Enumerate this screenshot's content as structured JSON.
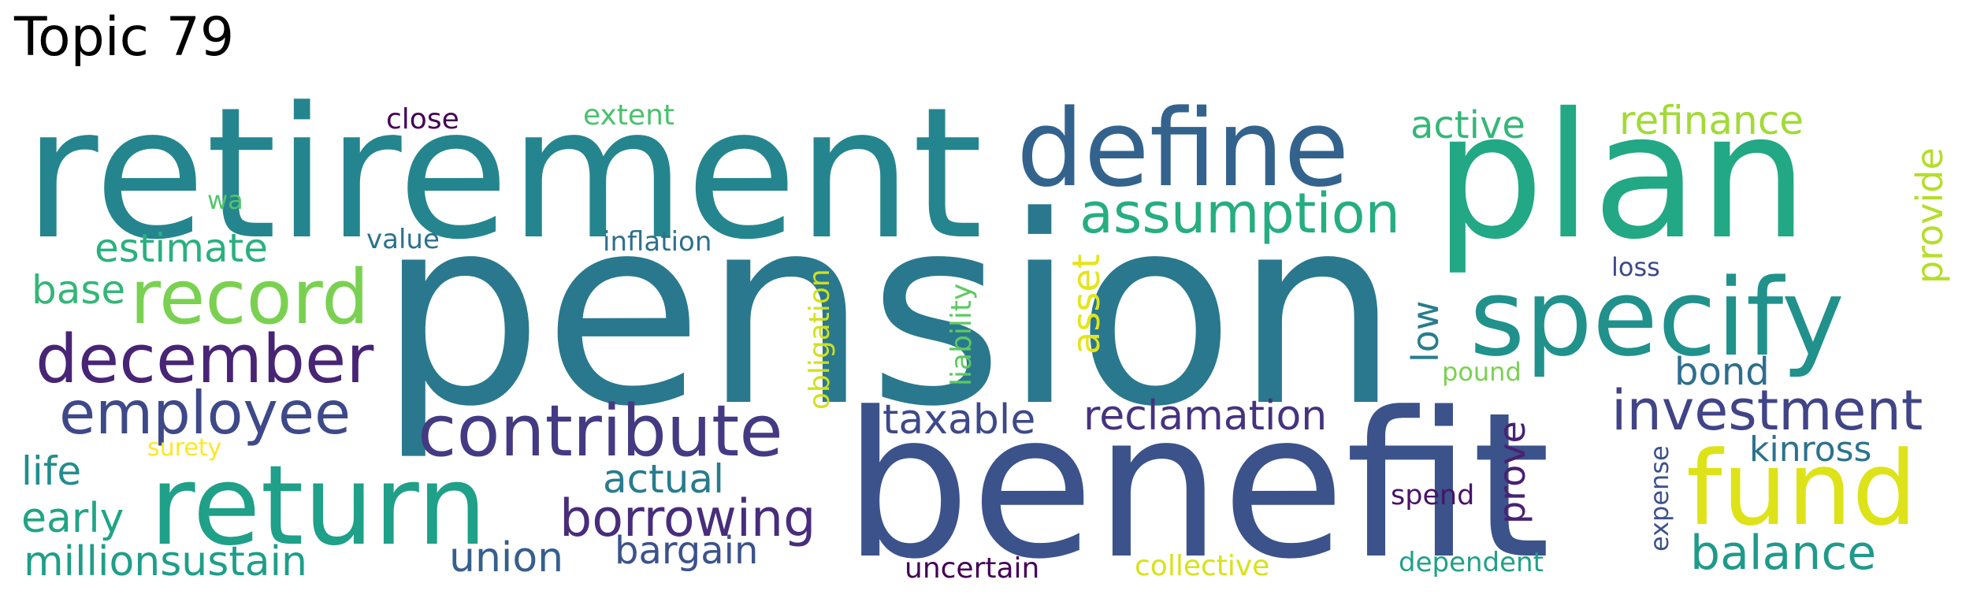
{
  "title": "Topic 79",
  "words": [
    {
      "text": "pension",
      "color": "#2a788e"
    },
    {
      "text": "benefit",
      "color": "#3b528b"
    },
    {
      "text": "retirement",
      "color": "#25858e"
    },
    {
      "text": "plan",
      "color": "#22a884"
    },
    {
      "text": "define",
      "color": "#33638d"
    },
    {
      "text": "specify",
      "color": "#21918c"
    },
    {
      "text": "fund",
      "color": "#dde318"
    },
    {
      "text": "return",
      "color": "#1fa088"
    },
    {
      "text": "record",
      "color": "#7ad151"
    },
    {
      "text": "december",
      "color": "#482475"
    },
    {
      "text": "contribute",
      "color": "#443a83"
    },
    {
      "text": "assumption",
      "color": "#26ad81"
    },
    {
      "text": "employee",
      "color": "#3e4989"
    },
    {
      "text": "investment",
      "color": "#414487"
    },
    {
      "text": "borrowing",
      "color": "#472d7b"
    },
    {
      "text": "balance",
      "color": "#1f9a8a"
    },
    {
      "text": "reclamation",
      "color": "#46337f"
    },
    {
      "text": "refinance",
      "color": "#a2da37"
    },
    {
      "text": "active",
      "color": "#35b779"
    },
    {
      "text": "estimate",
      "color": "#2ab07f"
    },
    {
      "text": "taxable",
      "color": "#3e4989"
    },
    {
      "text": "actual",
      "color": "#287c8e"
    },
    {
      "text": "union",
      "color": "#355f8d"
    },
    {
      "text": "bargain",
      "color": "#3b528b"
    },
    {
      "text": "kinross",
      "color": "#2c728e"
    },
    {
      "text": "bond",
      "color": "#2e6e8e"
    },
    {
      "text": "millionsustain",
      "color": "#1f9e89"
    },
    {
      "text": "early",
      "color": "#20a486"
    },
    {
      "text": "life",
      "color": "#228d8d"
    },
    {
      "text": "base",
      "color": "#34b679"
    },
    {
      "text": "asset",
      "color": "#e5e419"
    },
    {
      "text": "low",
      "color": "#287d8e"
    },
    {
      "text": "prove",
      "color": "#482173"
    },
    {
      "text": "provide",
      "color": "#b5de2b"
    },
    {
      "text": "obligation",
      "color": "#d0e11c"
    },
    {
      "text": "liability",
      "color": "#5ec962"
    },
    {
      "text": "expense",
      "color": "#3b528b"
    },
    {
      "text": "close",
      "color": "#440154"
    },
    {
      "text": "extent",
      "color": "#4ac16d"
    },
    {
      "text": "wa",
      "color": "#52c569"
    },
    {
      "text": "value",
      "color": "#2c718e"
    },
    {
      "text": "inflation",
      "color": "#2d708e"
    },
    {
      "text": "loss",
      "color": "#3e4989"
    },
    {
      "text": "pound",
      "color": "#7ad151"
    },
    {
      "text": "surety",
      "color": "#fde725"
    },
    {
      "text": "spend",
      "color": "#481467"
    },
    {
      "text": "uncertain",
      "color": "#440154"
    },
    {
      "text": "collective",
      "color": "#d8e219"
    },
    {
      "text": "dependent",
      "color": "#1fa188"
    }
  ]
}
